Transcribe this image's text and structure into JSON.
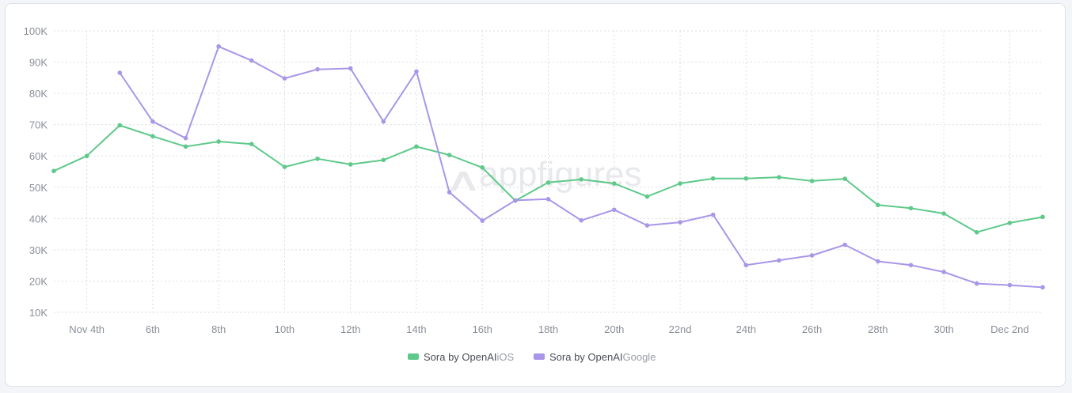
{
  "chart_data": {
    "type": "line",
    "title": "",
    "xlabel": "",
    "ylabel": "",
    "ylim": [
      10000,
      100000
    ],
    "y_ticks": [
      10000,
      20000,
      30000,
      40000,
      50000,
      60000,
      70000,
      80000,
      90000,
      100000
    ],
    "y_tick_labels": [
      "10K",
      "20K",
      "30K",
      "40K",
      "50K",
      "60K",
      "70K",
      "80K",
      "90K",
      "100K"
    ],
    "x": [
      "Nov 3",
      "Nov 4",
      "Nov 5",
      "Nov 6",
      "Nov 7",
      "Nov 8",
      "Nov 9",
      "Nov 10",
      "Nov 11",
      "Nov 12",
      "Nov 13",
      "Nov 14",
      "Nov 15",
      "Nov 16",
      "Nov 17",
      "Nov 18",
      "Nov 19",
      "Nov 20",
      "Nov 21",
      "Nov 22",
      "Nov 23",
      "Nov 24",
      "Nov 25",
      "Nov 26",
      "Nov 27",
      "Nov 28",
      "Nov 29",
      "Nov 30",
      "Dec 1",
      "Dec 2",
      "Dec 3"
    ],
    "x_tick_labels": [
      {
        "index": 1,
        "label": "Nov 4th"
      },
      {
        "index": 3,
        "label": "6th"
      },
      {
        "index": 5,
        "label": "8th"
      },
      {
        "index": 7,
        "label": "10th"
      },
      {
        "index": 9,
        "label": "12th"
      },
      {
        "index": 11,
        "label": "14th"
      },
      {
        "index": 13,
        "label": "16th"
      },
      {
        "index": 15,
        "label": "18th"
      },
      {
        "index": 17,
        "label": "20th"
      },
      {
        "index": 19,
        "label": "22nd"
      },
      {
        "index": 21,
        "label": "24th"
      },
      {
        "index": 23,
        "label": "26th"
      },
      {
        "index": 25,
        "label": "28th"
      },
      {
        "index": 27,
        "label": "30th"
      },
      {
        "index": 29,
        "label": "Dec 2nd"
      }
    ],
    "grid": true,
    "legend_position": "bottom-center",
    "series": [
      {
        "name": "Sora by OpenAI",
        "platform": "iOS",
        "color": "#5ec98a",
        "values": [
          55200,
          60000,
          69800,
          66300,
          63000,
          64600,
          63800,
          56500,
          59100,
          57300,
          58700,
          63000,
          60300,
          56300,
          45700,
          51500,
          52500,
          51200,
          47000,
          51200,
          52800,
          52800,
          53200,
          52000,
          52700,
          44300,
          43300,
          41600,
          35600,
          38600,
          40500
        ]
      },
      {
        "name": "Sora by OpenAI",
        "platform": "Google",
        "color": "#a996e8",
        "values": [
          null,
          null,
          86600,
          71000,
          65700,
          95000,
          90500,
          84800,
          87700,
          88000,
          71000,
          87000,
          48400,
          39300,
          45800,
          46200,
          39400,
          42800,
          37800,
          38800,
          41200,
          25100,
          26600,
          28200,
          31600,
          26300,
          25100,
          22900,
          19200,
          18700,
          18000
        ]
      }
    ]
  },
  "watermark": "appfigures",
  "legend": [
    {
      "name": "Sora by OpenAI",
      "platform": "iOS",
      "color": "#5ec98a"
    },
    {
      "name": "Sora by OpenAI",
      "platform": "Google",
      "color": "#a996e8"
    }
  ]
}
